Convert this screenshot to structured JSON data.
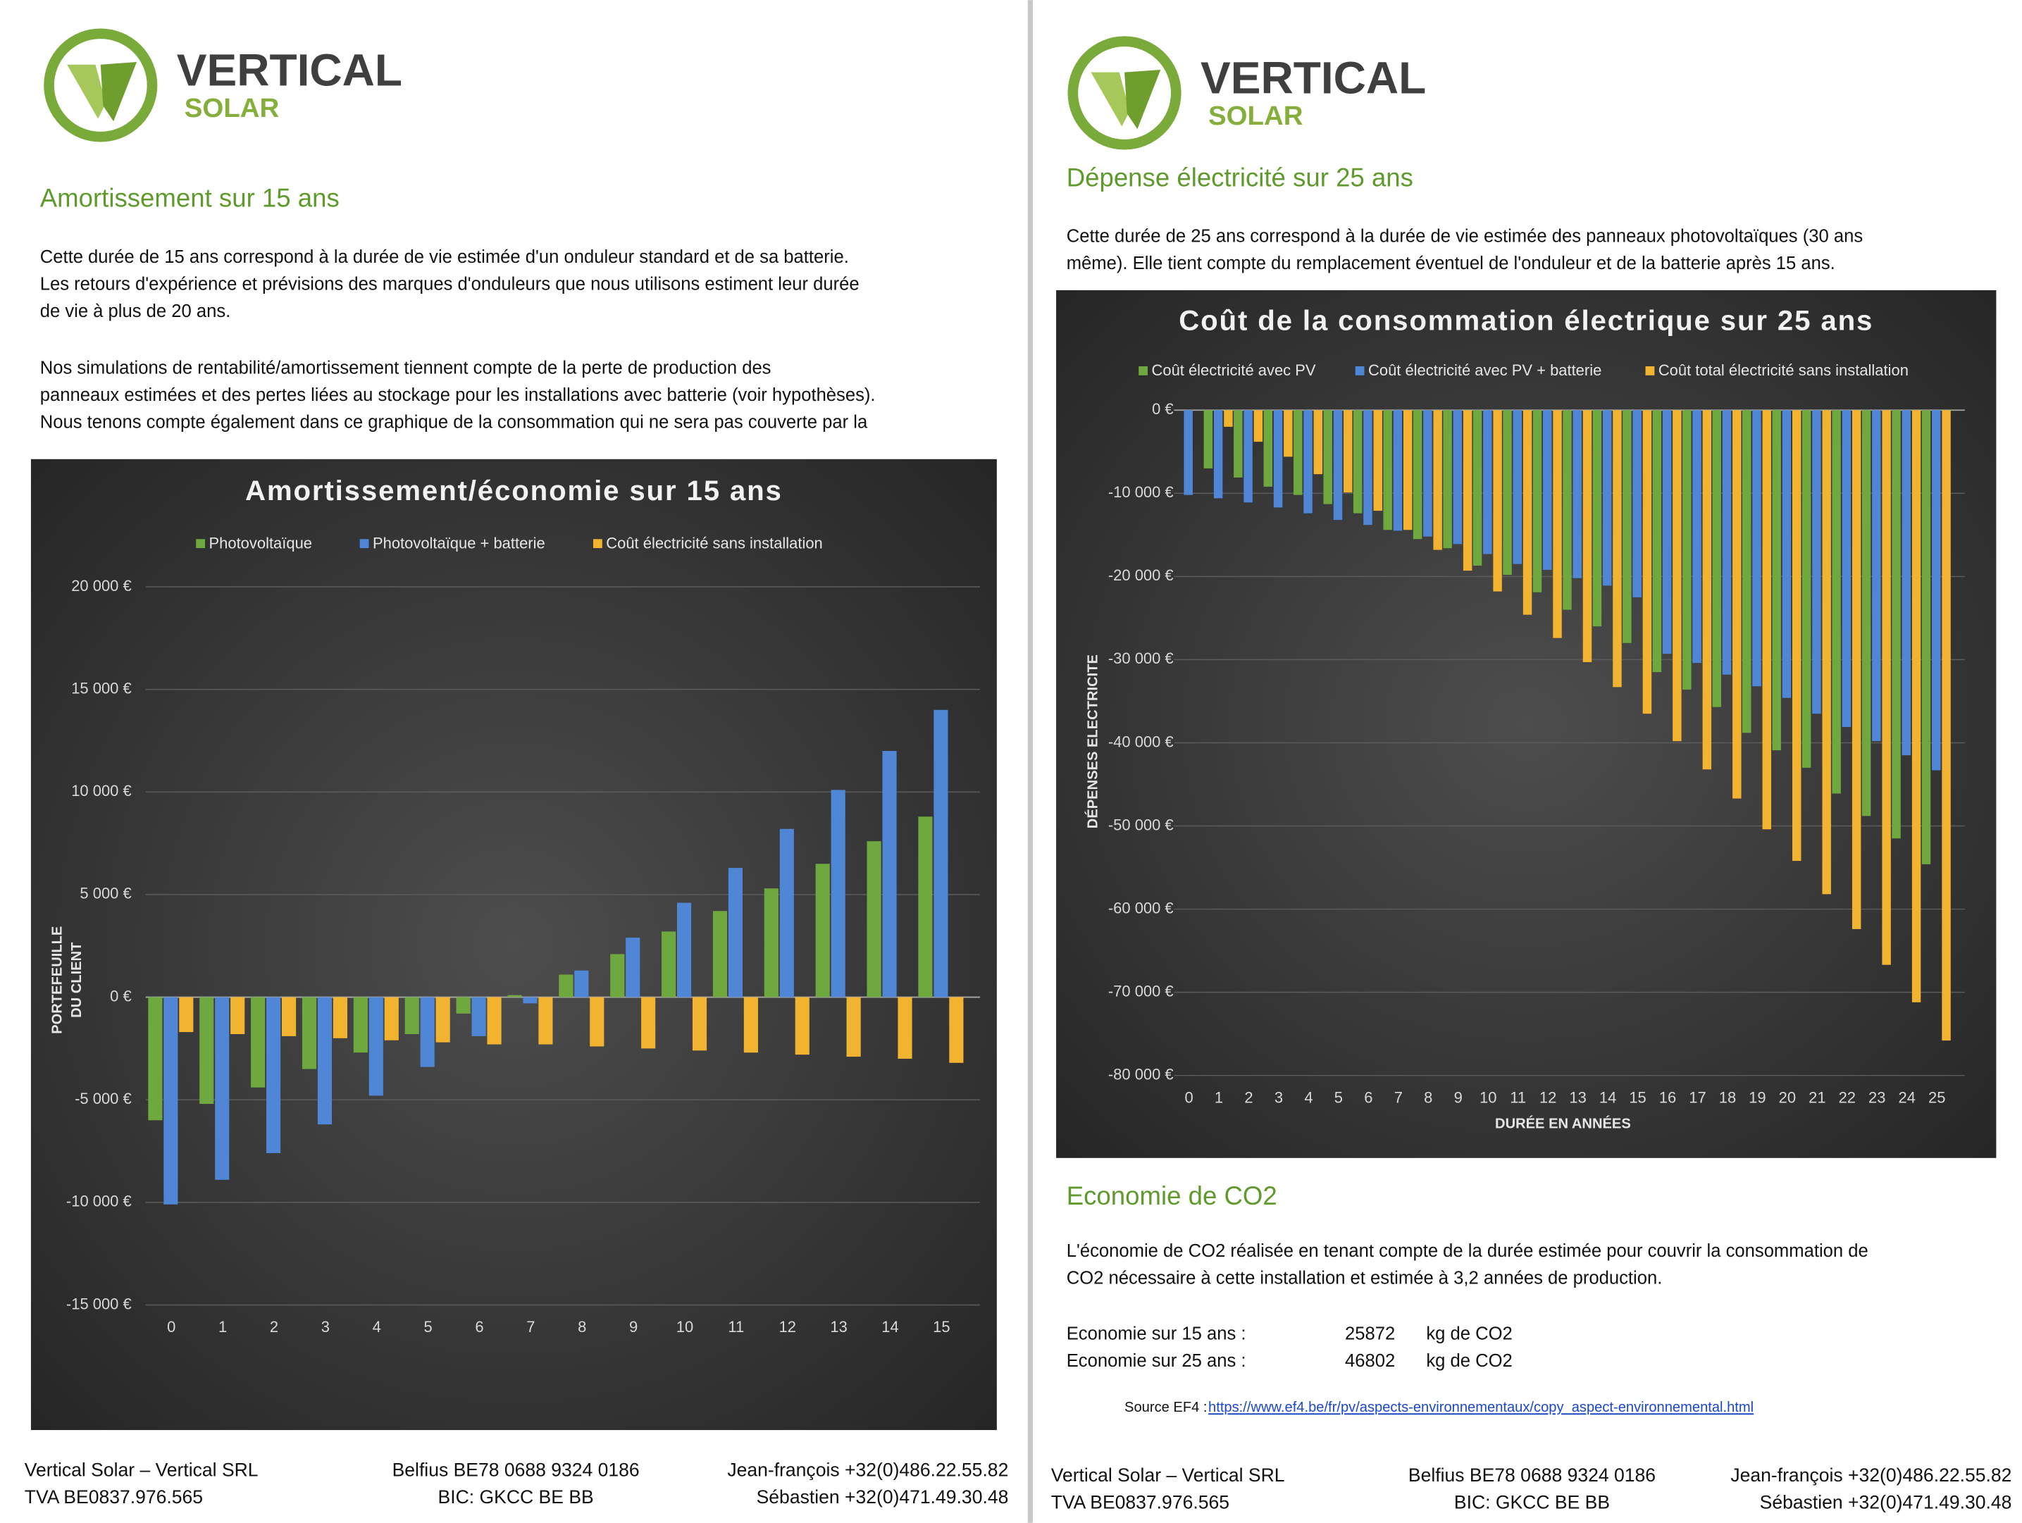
{
  "pages": [
    {
      "logo": {
        "brand": "VERTICAL",
        "sub": "SOLAR"
      },
      "heading": "Amortissement sur 15 ans",
      "paragraphs": [
        [
          "Cette durée de 15 ans correspond à la durée de vie estimée d'un onduleur standard et de sa batterie.",
          "Les retours d'expérience et prévisions des marques d'onduleurs que nous utilisons estiment leur durée",
          "de vie à plus de 20 ans."
        ],
        [
          "Nos simulations de rentabilité/amortissement tiennent compte de la perte de production des",
          "panneaux estimées et des pertes liées au stockage pour les installations avec batterie (voir hypothèses).",
          "Nous tenons compte également dans ce graphique de la consommation qui ne sera pas couverte par la"
        ]
      ],
      "footer": {
        "company": "Vertical Solar – Vertical SRL",
        "vat": "TVA BE0837.976.565",
        "bank": "Belfius BE78 0688 9324 0186",
        "bic": "BIC: GKCC BE BB",
        "contact1": "Jean-françois +32(0)486.22.55.82",
        "contact2": "Sébastien +32(0)471.49.30.48"
      }
    },
    {
      "logo": {
        "brand": "VERTICAL",
        "sub": "SOLAR"
      },
      "heading": "Dépense électricité sur 25 ans",
      "paragraphs": [
        [
          "Cette durée de 25 ans correspond à la durée de vie estimée des panneaux photovoltaïques (30 ans",
          "même). Elle tient compte du remplacement éventuel de l'onduleur et de la batterie après 15 ans."
        ]
      ],
      "co2": {
        "heading": "Economie de CO2",
        "paragraph": [
          "L'économie de CO2 réalisée en tenant compte de la durée estimée pour couvrir la consommation de",
          "CO2 nécessaire à cette installation et estimée à 3,2 années de production."
        ],
        "rows": [
          [
            "Economie sur 15 ans :",
            "25872",
            "kg de CO2"
          ],
          [
            "Economie sur 25 ans :",
            "46802",
            "kg de CO2"
          ]
        ],
        "source_label": "Source EF4 :",
        "source_url": "https://www.ef4.be/fr/pv/aspects-environnementaux/copy_aspect-environnemental.html"
      },
      "footer": {
        "company": "Vertical Solar – Vertical SRL",
        "vat": "TVA BE0837.976.565",
        "bank": "Belfius BE78 0688 9324 0186",
        "bic": "BIC: GKCC BE BB",
        "contact1": "Jean-françois +32(0)486.22.55.82",
        "contact2": "Sébastien +32(0)471.49.30.48"
      }
    }
  ],
  "chart_data": [
    {
      "type": "bar",
      "title": "Amortissement/économie sur 15 ans",
      "ylabel": [
        "PORTEFEUILLE",
        "DU CLIENT"
      ],
      "categories": [
        "0",
        "1",
        "2",
        "3",
        "4",
        "5",
        "6",
        "7",
        "8",
        "9",
        "10",
        "11",
        "12",
        "13",
        "14",
        "15"
      ],
      "series": [
        {
          "name": "Photovoltaïque",
          "color": "#6ea83f",
          "values": [
            -6000,
            -5200,
            -4400,
            -3500,
            -2700,
            -1800,
            -800,
            100,
            1100,
            2100,
            3200,
            4200,
            5300,
            6500,
            7600,
            8800
          ]
        },
        {
          "name": "Photovoltaïque + batterie",
          "color": "#4f86d6",
          "values": [
            -10100,
            -8900,
            -7600,
            -6200,
            -4800,
            -3400,
            -1900,
            -300,
            1300,
            2900,
            4600,
            6300,
            8200,
            10100,
            12000,
            14000
          ]
        },
        {
          "name": "Coût électricité sans installation",
          "color": "#f2b430",
          "values": [
            -1700,
            -1800,
            -1900,
            -2000,
            -2100,
            -2200,
            -2300,
            -2300,
            -2400,
            -2500,
            -2600,
            -2700,
            -2800,
            -2900,
            -3000,
            -3200
          ]
        }
      ],
      "ylim": [
        -15000,
        20000
      ],
      "yticks": [
        {
          "value": 20000,
          "label": "20 000 €"
        },
        {
          "value": 15000,
          "label": "15 000 €"
        },
        {
          "value": 10000,
          "label": "10 000 €"
        },
        {
          "value": 5000,
          "label": "5 000 €"
        },
        {
          "value": 0,
          "label": "0 €"
        },
        {
          "value": -5000,
          "label": "-5 000 €"
        },
        {
          "value": -10000,
          "label": "-10 000 €"
        },
        {
          "value": -15000,
          "label": "-15 000 €"
        }
      ],
      "grid": true
    },
    {
      "type": "bar",
      "title": "Coût de la consommation électrique sur 25 ans",
      "xlabel": "DURÉE EN ANNÉES",
      "ylabel": [
        "DÉPENSES ELECTRICITE"
      ],
      "categories": [
        "0",
        "1",
        "2",
        "3",
        "4",
        "5",
        "6",
        "7",
        "8",
        "9",
        "10",
        "11",
        "12",
        "13",
        "14",
        "15",
        "16",
        "17",
        "18",
        "19",
        "20",
        "21",
        "22",
        "23",
        "24",
        "25"
      ],
      "series": [
        {
          "name": "Coût électricité avec PV",
          "color": "#6ea83f",
          "values": [
            0,
            -7000,
            -8100,
            -9200,
            -10200,
            -11300,
            -12400,
            -14400,
            -15500,
            -16600,
            -18700,
            -19800,
            -21900,
            -24000,
            -26000,
            -28000,
            -31500,
            -33600,
            -35700,
            -38800,
            -40900,
            -43000,
            -46100,
            -48800,
            -51500,
            -54600
          ]
        },
        {
          "name": "Coût électricité avec PV + batterie",
          "color": "#4f86d6",
          "values": [
            -10200,
            -10600,
            -11100,
            -11700,
            -12400,
            -13200,
            -13800,
            -14500,
            -15200,
            -16100,
            -17300,
            -18500,
            -19200,
            -20200,
            -21100,
            -22500,
            -29300,
            -30400,
            -31800,
            -33200,
            -34600,
            -36500,
            -38100,
            -39800,
            -41500,
            -43300
          ]
        },
        {
          "name": "Coût total électricité sans installation",
          "color": "#f2b430",
          "values": [
            0,
            -2000,
            -3800,
            -5600,
            -7700,
            -9900,
            -12100,
            -14400,
            -16800,
            -19300,
            -21800,
            -24600,
            -27400,
            -30300,
            -33300,
            -36500,
            -39800,
            -43200,
            -46700,
            -50400,
            -54200,
            -58200,
            -62400,
            -66700,
            -71200,
            -75800
          ]
        }
      ],
      "ylim": [
        -80000,
        0
      ],
      "yticks": [
        {
          "value": 0,
          "label": "0 €"
        },
        {
          "value": -10000,
          "label": "-10 000 €"
        },
        {
          "value": -20000,
          "label": "-20 000 €"
        },
        {
          "value": -30000,
          "label": "-30 000 €"
        },
        {
          "value": -40000,
          "label": "-40 000 €"
        },
        {
          "value": -50000,
          "label": "-50 000 €"
        },
        {
          "value": -60000,
          "label": "-60 000 €"
        },
        {
          "value": -70000,
          "label": "-70 000 €"
        },
        {
          "value": -80000,
          "label": "-80 000 €"
        }
      ],
      "grid": true
    }
  ]
}
